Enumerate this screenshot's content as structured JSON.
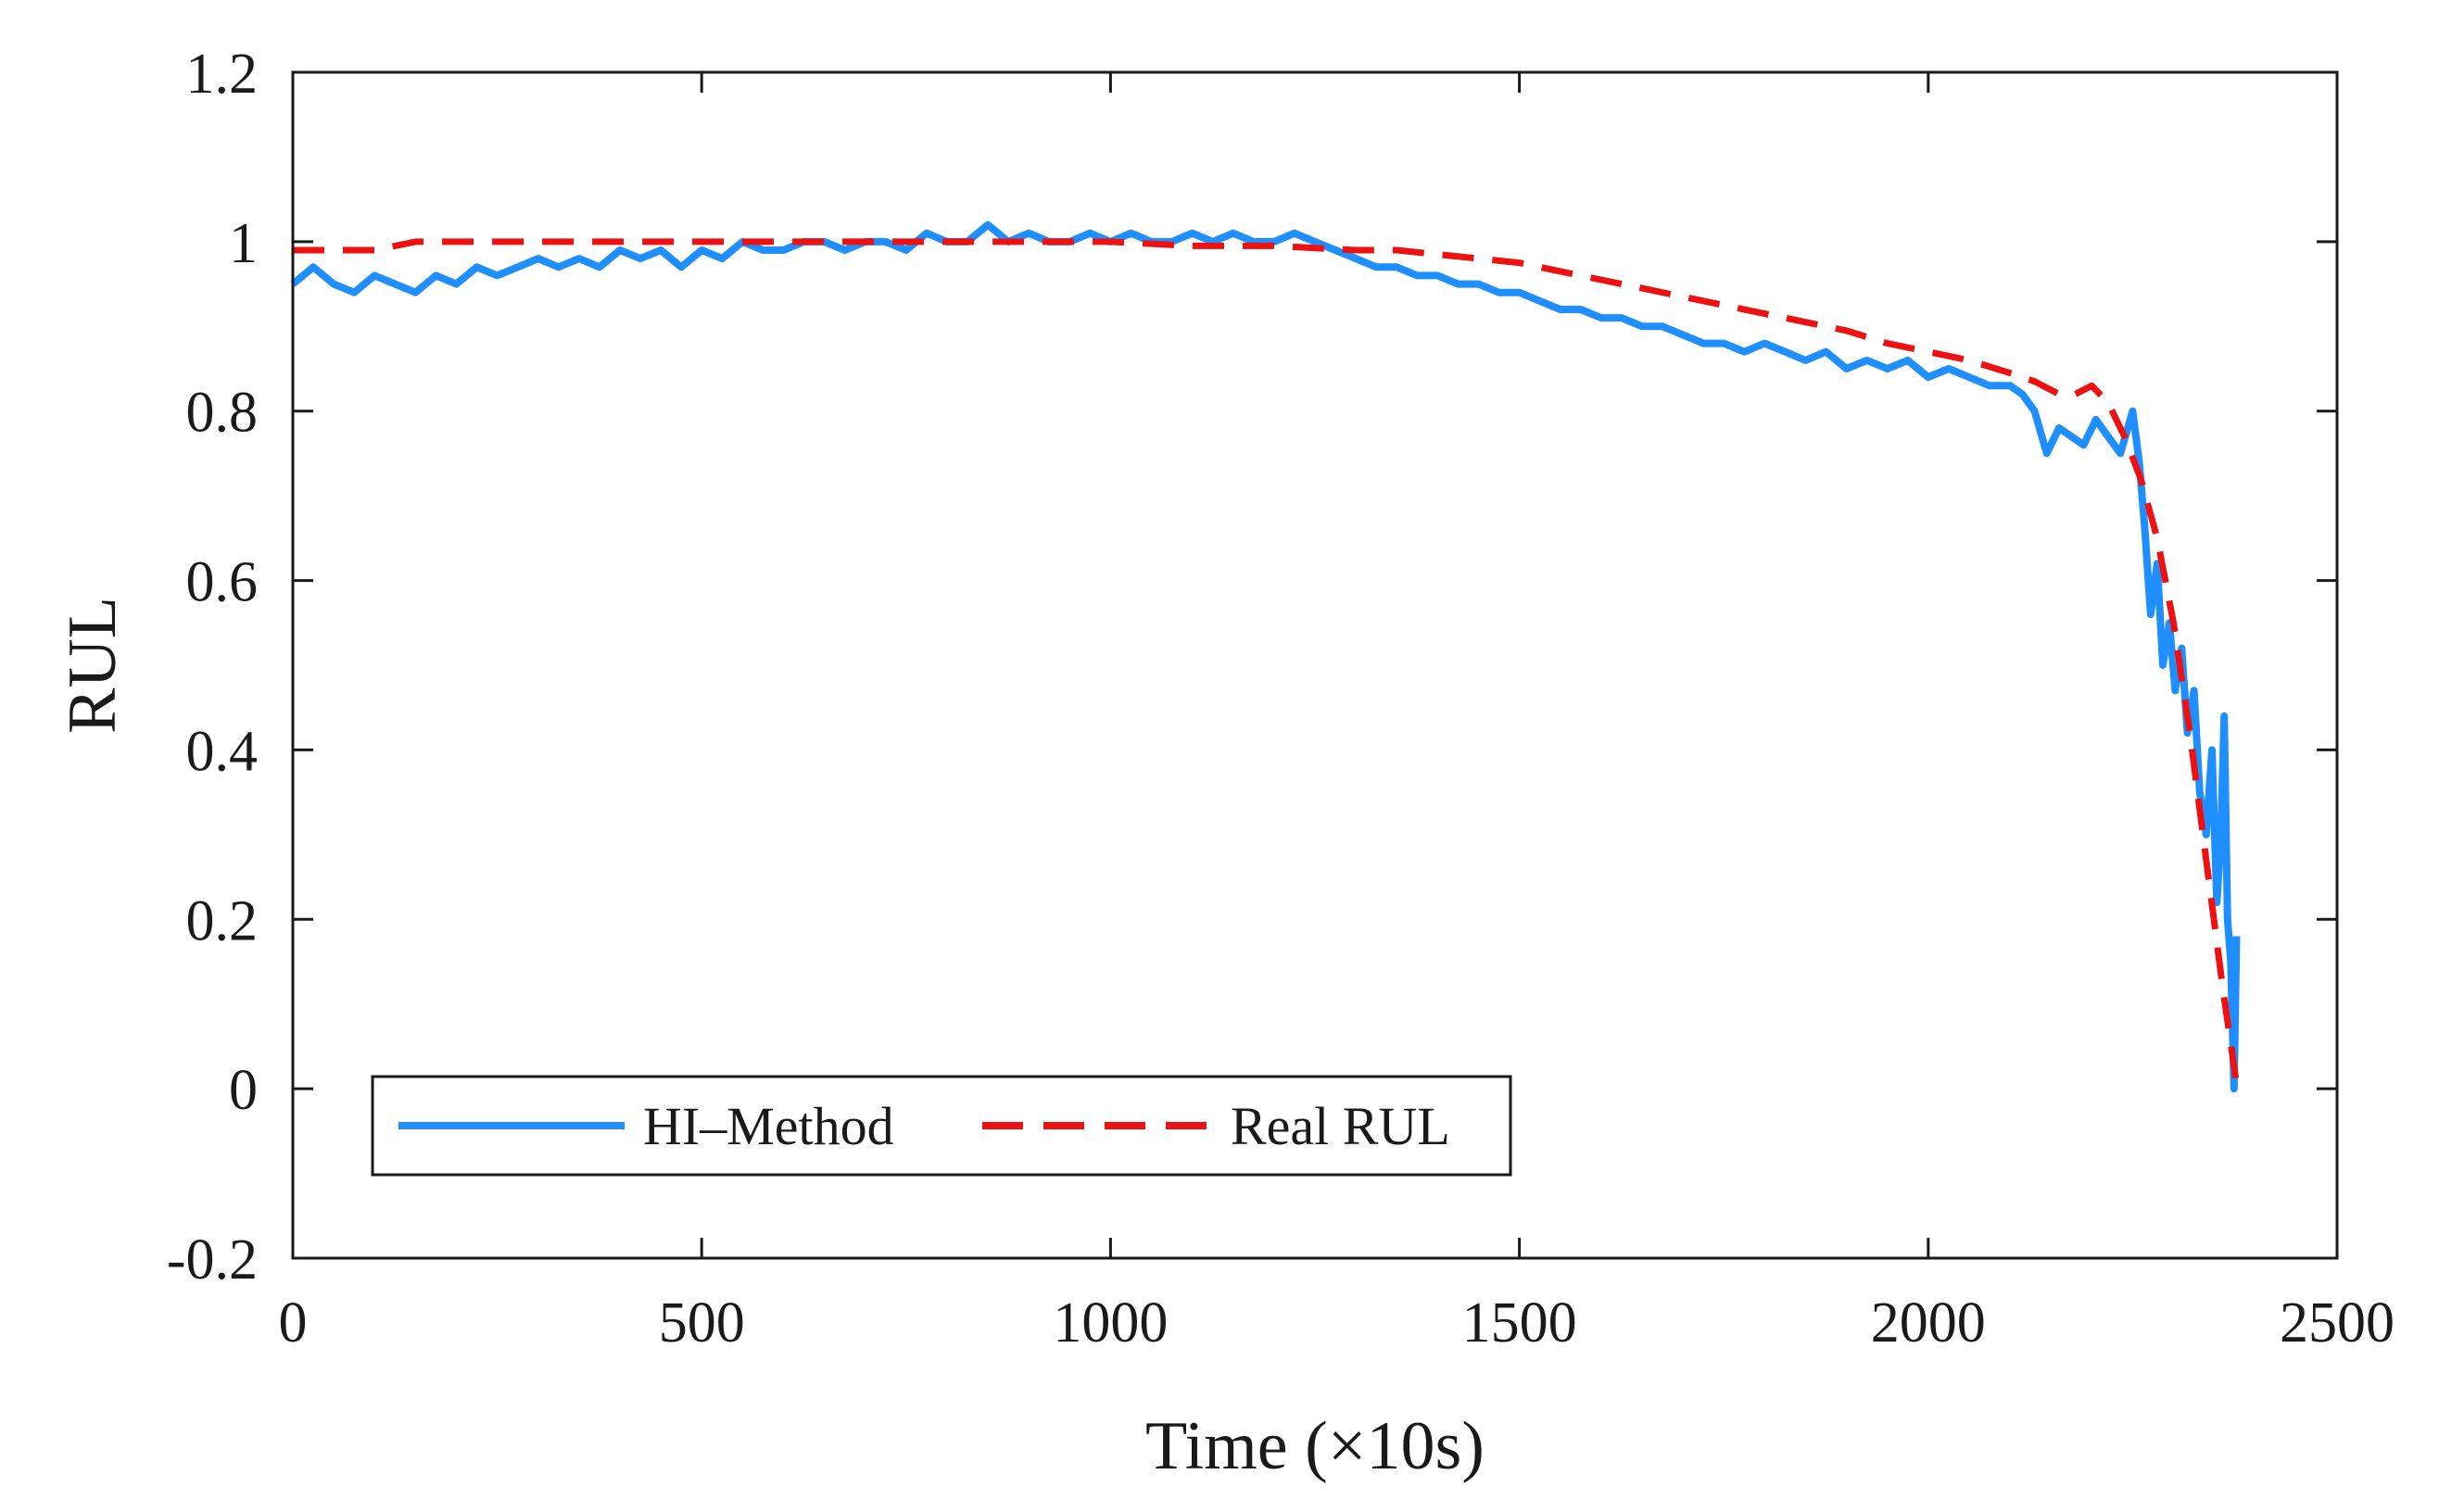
{
  "chart_data": {
    "type": "line",
    "title": "",
    "xlabel": "Time (×10s)",
    "ylabel": "RUL",
    "xlim": [
      0,
      2500
    ],
    "ylim": [
      -0.2,
      1.2
    ],
    "xticks": [
      0,
      500,
      1000,
      1500,
      2000,
      2500
    ],
    "xtick_labels": [
      "0",
      "500",
      "1000",
      "1500",
      "2000",
      "2500"
    ],
    "yticks": [
      -0.2,
      0,
      0.2,
      0.4,
      0.6,
      0.8,
      1,
      1.2
    ],
    "ytick_labels": [
      "-0.2",
      "0",
      "0.2",
      "0.4",
      "0.6",
      "0.8",
      "1",
      "1.2"
    ],
    "grid": false,
    "legend_position": "bottom-left",
    "series": [
      {
        "name": "HI–Method",
        "color": "#1f8fff",
        "style": "solid",
        "x": [
          0,
          25,
          50,
          75,
          100,
          125,
          150,
          175,
          200,
          225,
          250,
          275,
          300,
          325,
          350,
          375,
          400,
          425,
          450,
          475,
          500,
          525,
          550,
          575,
          600,
          625,
          650,
          675,
          700,
          725,
          750,
          775,
          800,
          825,
          850,
          875,
          900,
          925,
          950,
          975,
          1000,
          1025,
          1050,
          1075,
          1100,
          1125,
          1150,
          1175,
          1200,
          1225,
          1250,
          1275,
          1300,
          1325,
          1350,
          1375,
          1400,
          1425,
          1450,
          1475,
          1500,
          1525,
          1550,
          1575,
          1600,
          1625,
          1650,
          1675,
          1700,
          1725,
          1750,
          1775,
          1800,
          1825,
          1850,
          1875,
          1900,
          1925,
          1950,
          1975,
          2000,
          2025,
          2050,
          2075,
          2100,
          2115,
          2130,
          2145,
          2160,
          2175,
          2190,
          2205,
          2220,
          2235,
          2250,
          2258,
          2265,
          2272,
          2280,
          2287,
          2295,
          2302,
          2310,
          2317,
          2325,
          2332,
          2340,
          2347,
          2353,
          2358,
          2362,
          2366,
          2370,
          2374,
          2377
        ],
        "y": [
          0.95,
          0.97,
          0.95,
          0.94,
          0.96,
          0.95,
          0.94,
          0.96,
          0.95,
          0.97,
          0.96,
          0.97,
          0.98,
          0.97,
          0.98,
          0.97,
          0.99,
          0.98,
          0.99,
          0.97,
          0.99,
          0.98,
          1.0,
          0.99,
          0.99,
          1.0,
          1.0,
          0.99,
          1.0,
          1.0,
          0.99,
          1.01,
          1.0,
          1.0,
          1.02,
          1.0,
          1.01,
          1.0,
          1.0,
          1.01,
          1.0,
          1.01,
          1.0,
          1.0,
          1.01,
          1.0,
          1.01,
          1.0,
          1.0,
          1.01,
          1.0,
          0.99,
          0.98,
          0.97,
          0.97,
          0.96,
          0.96,
          0.95,
          0.95,
          0.94,
          0.94,
          0.93,
          0.92,
          0.92,
          0.91,
          0.91,
          0.9,
          0.9,
          0.89,
          0.88,
          0.88,
          0.87,
          0.88,
          0.87,
          0.86,
          0.87,
          0.85,
          0.86,
          0.85,
          0.86,
          0.84,
          0.85,
          0.84,
          0.83,
          0.83,
          0.82,
          0.8,
          0.75,
          0.78,
          0.77,
          0.76,
          0.79,
          0.77,
          0.75,
          0.8,
          0.74,
          0.66,
          0.56,
          0.62,
          0.5,
          0.55,
          0.47,
          0.52,
          0.42,
          0.47,
          0.35,
          0.3,
          0.4,
          0.22,
          0.3,
          0.44,
          0.2,
          0.15,
          0.0,
          0.18
        ]
      },
      {
        "name": "Real RUL",
        "color": "#ee1111",
        "style": "dashed",
        "x": [
          0,
          50,
          100,
          150,
          200,
          300,
          400,
          500,
          600,
          700,
          800,
          900,
          1000,
          1100,
          1200,
          1300,
          1350,
          1400,
          1450,
          1500,
          1550,
          1600,
          1650,
          1700,
          1750,
          1800,
          1850,
          1900,
          1950,
          2000,
          2050,
          2100,
          2130,
          2160,
          2180,
          2200,
          2220,
          2240,
          2260,
          2280,
          2300,
          2320,
          2340,
          2360,
          2378
        ],
        "y": [
          0.99,
          0.99,
          0.99,
          1.0,
          1.0,
          1.0,
          1.0,
          1.0,
          1.0,
          1.0,
          1.0,
          1.0,
          1.0,
          0.995,
          0.995,
          0.99,
          0.99,
          0.985,
          0.98,
          0.975,
          0.965,
          0.955,
          0.945,
          0.935,
          0.925,
          0.915,
          0.905,
          0.895,
          0.88,
          0.87,
          0.86,
          0.845,
          0.835,
          0.82,
          0.82,
          0.83,
          0.81,
          0.77,
          0.72,
          0.65,
          0.55,
          0.42,
          0.27,
          0.12,
          0.0
        ]
      }
    ]
  }
}
